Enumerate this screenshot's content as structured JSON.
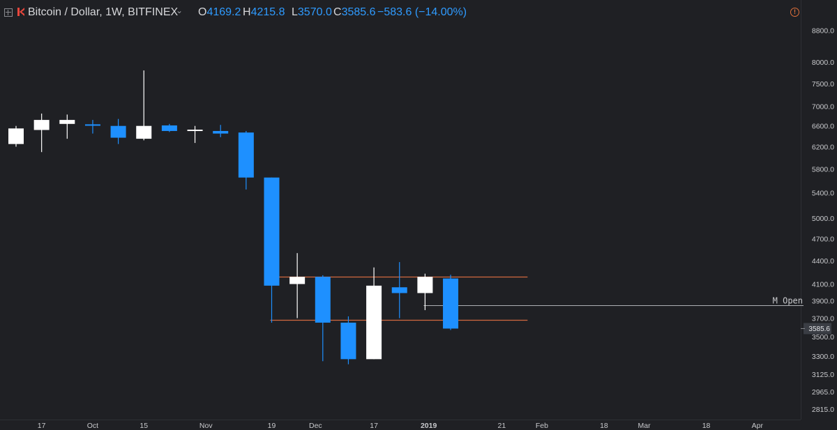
{
  "header": {
    "symbol": "Bitcoin / Dollar, 1W, BITFINEX",
    "open_label": "O",
    "open": "4169.2",
    "high_label": "H",
    "high": "4215.8",
    "low_label": "L",
    "low": "3570.0",
    "close_label": "C",
    "close": "3585.6",
    "change": "−583.6 (−14.00%)"
  },
  "colors": {
    "background": "#1f2024",
    "up": "#ffffff",
    "down": "#1e90ff",
    "level_line": "#d2693f",
    "accent": "#2f9bff"
  },
  "chart_data": {
    "type": "candlestick",
    "scale": "log",
    "y_ticks": [
      "8800.0",
      "8000.0",
      "7500.0",
      "7000.0",
      "6600.0",
      "6200.0",
      "5800.0",
      "5400.0",
      "5000.0",
      "4700.0",
      "4400.0",
      "4100.0",
      "3900.0",
      "3700.0",
      "3500.0",
      "3300.0",
      "3125.0",
      "2965.0",
      "2815.0"
    ],
    "x_ticks": [
      "17",
      "Oct",
      "15",
      "Nov",
      "19",
      "Dec",
      "17",
      "2019",
      "21",
      "Feb",
      "18",
      "Mar",
      "18",
      "Apr"
    ],
    "candles": [
      {
        "date": "2018-09-10",
        "o": 6250,
        "h": 6600,
        "l": 6200,
        "c": 6550
      },
      {
        "date": "2018-09-17",
        "o": 6520,
        "h": 6850,
        "l": 6100,
        "c": 6720
      },
      {
        "date": "2018-09-24",
        "o": 6640,
        "h": 6830,
        "l": 6350,
        "c": 6720
      },
      {
        "date": "2018-10-01",
        "o": 6625,
        "h": 6720,
        "l": 6450,
        "c": 6610
      },
      {
        "date": "2018-10-08",
        "o": 6600,
        "h": 6740,
        "l": 6250,
        "c": 6370
      },
      {
        "date": "2018-10-15",
        "o": 6350,
        "h": 7800,
        "l": 6320,
        "c": 6600
      },
      {
        "date": "2018-10-22",
        "o": 6610,
        "h": 6640,
        "l": 6480,
        "c": 6500
      },
      {
        "date": "2018-10-29",
        "o": 6505,
        "h": 6600,
        "l": 6270,
        "c": 6520
      },
      {
        "date": "2018-11-05",
        "o": 6500,
        "h": 6620,
        "l": 6380,
        "c": 6450
      },
      {
        "date": "2018-11-12",
        "o": 6470,
        "h": 6500,
        "l": 5450,
        "c": 5650
      },
      {
        "date": "2018-11-19",
        "o": 5650,
        "h": 5650,
        "l": 3650,
        "c": 4080
      },
      {
        "date": "2018-11-26",
        "o": 4100,
        "h": 4500,
        "l": 3700,
        "c": 4190
      },
      {
        "date": "2018-12-03",
        "o": 4190,
        "h": 4210,
        "l": 3250,
        "c": 3650
      },
      {
        "date": "2018-12-10",
        "o": 3650,
        "h": 3720,
        "l": 3220,
        "c": 3270
      },
      {
        "date": "2018-12-17",
        "o": 3270,
        "h": 4310,
        "l": 3270,
        "c": 4080
      },
      {
        "date": "2018-12-24",
        "o": 4060,
        "h": 4380,
        "l": 3700,
        "c": 3990
      },
      {
        "date": "2018-12-31",
        "o": 3990,
        "h": 4230,
        "l": 3790,
        "c": 4190
      },
      {
        "date": "2019-01-07",
        "o": 4169.2,
        "h": 4215.8,
        "l": 3570.0,
        "c": 3585.6
      }
    ],
    "levels": [
      {
        "price": 4190
      },
      {
        "price": 3680
      }
    ],
    "annotation": {
      "text": "M Open",
      "price": 3845
    },
    "last_price": "3585.6"
  }
}
